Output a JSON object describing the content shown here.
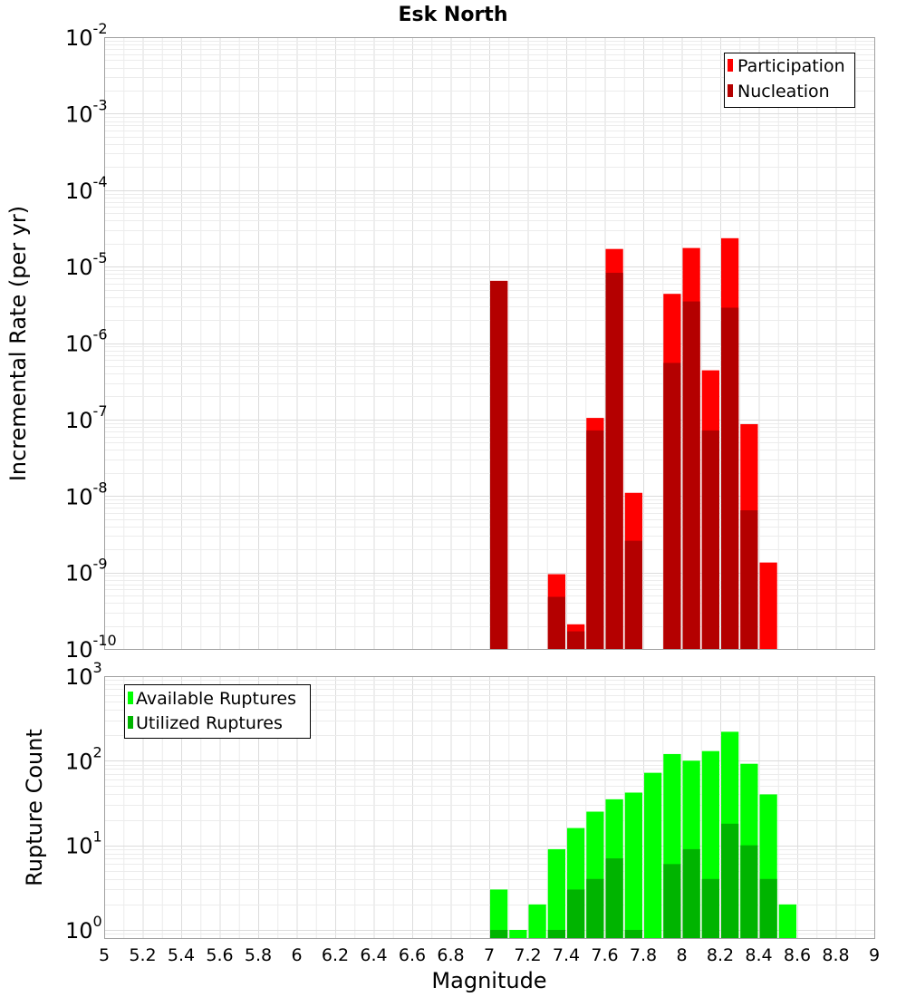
{
  "chart_data": [
    {
      "type": "bar",
      "title": "Esk North",
      "ylabel": "Incremental Rate (per yr)",
      "yscale": "log",
      "ylim": [
        1e-10,
        0.01
      ],
      "xlim": [
        5,
        9
      ],
      "bin_width": 0.1,
      "grid": true,
      "legend_position": "top-right",
      "x": [
        7.05,
        7.35,
        7.45,
        7.55,
        7.65,
        7.75,
        7.95,
        8.05,
        8.15,
        8.25,
        8.35,
        8.45
      ],
      "series": [
        {
          "name": "Participation",
          "color": "#ff0000",
          "values": [
            6.5e-06,
            9.5e-10,
            2.1e-10,
            1.05e-07,
            1.7e-05,
            1.1e-08,
            4.4e-06,
            1.75e-05,
            4.4e-07,
            2.35e-05,
            8.7e-08,
            1.35e-09
          ]
        },
        {
          "name": "Nucleation",
          "color": "#b40000",
          "values": [
            6.5e-06,
            4.8e-10,
            1.7e-10,
            7.2e-08,
            8.3e-06,
            2.6e-09,
            5.5e-07,
            3.5e-06,
            7.2e-08,
            2.9e-06,
            6.5e-09,
            null
          ]
        }
      ]
    },
    {
      "type": "bar",
      "xlabel": "Magnitude",
      "ylabel": "Rupture Count",
      "yscale": "log",
      "ylim": [
        0.8,
        1000
      ],
      "xlim": [
        5,
        9
      ],
      "bin_width": 0.1,
      "grid": true,
      "legend_position": "top-left",
      "x": [
        7.05,
        7.15,
        7.25,
        7.35,
        7.45,
        7.55,
        7.65,
        7.75,
        7.85,
        7.95,
        8.05,
        8.15,
        8.25,
        8.35,
        8.45,
        8.55
      ],
      "series": [
        {
          "name": "Available Ruptures",
          "color": "#00ff00",
          "values": [
            3,
            1,
            2,
            9,
            16,
            25,
            35,
            42,
            72,
            120,
            100,
            130,
            220,
            92,
            40,
            2
          ]
        },
        {
          "name": "Utilized Ruptures",
          "color": "#00b400",
          "values": [
            1,
            null,
            null,
            1,
            3,
            4,
            7,
            1,
            null,
            6,
            9,
            4,
            18,
            10,
            4,
            null
          ]
        }
      ]
    }
  ],
  "y_ticks_top": [
    {
      "base": "10",
      "exp": "-10"
    },
    {
      "base": "10",
      "exp": "-9"
    },
    {
      "base": "10",
      "exp": "-8"
    },
    {
      "base": "10",
      "exp": "-7"
    },
    {
      "base": "10",
      "exp": "-6"
    },
    {
      "base": "10",
      "exp": "-5"
    },
    {
      "base": "10",
      "exp": "-4"
    },
    {
      "base": "10",
      "exp": "-3"
    },
    {
      "base": "10",
      "exp": "-2"
    }
  ],
  "y_ticks_bottom": [
    {
      "base": "10",
      "exp": "0"
    },
    {
      "base": "10",
      "exp": "1"
    },
    {
      "base": "10",
      "exp": "2"
    },
    {
      "base": "10",
      "exp": "3"
    }
  ],
  "x_ticks": [
    "5",
    "5.2",
    "5.4",
    "5.6",
    "5.8",
    "6",
    "6.2",
    "6.4",
    "6.6",
    "6.8",
    "7",
    "7.2",
    "7.4",
    "7.6",
    "7.8",
    "8",
    "8.2",
    "8.4",
    "8.6",
    "8.8",
    "9"
  ]
}
